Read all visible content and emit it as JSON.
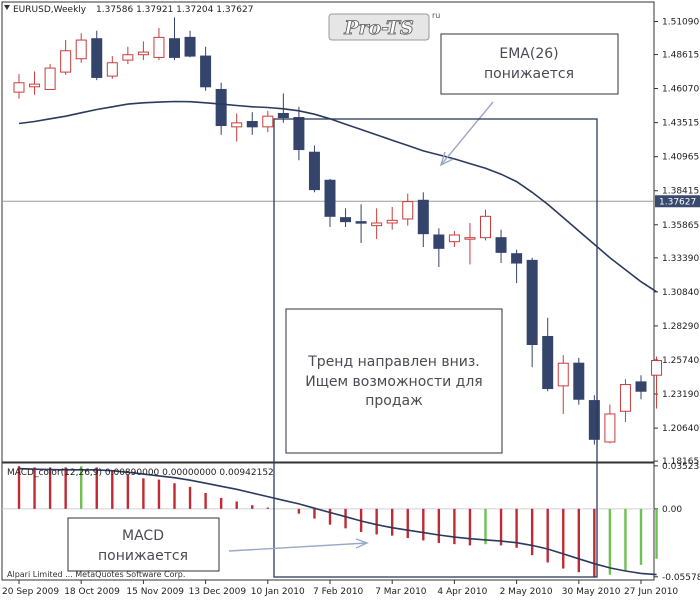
{
  "chart_data": {
    "type": "candlestick",
    "main": {
      "title": "EURUSD,Weekly",
      "ohlc_readout": "1.37586 1.37921 1.37204 1.37627",
      "current_price": 1.37627,
      "current_price_label": "1.37627",
      "y_ticks": [
        "1.51090",
        "1.48615",
        "1.46070",
        "1.43515",
        "1.40965",
        "1.38415",
        "1.35865",
        "1.33390",
        "1.30840",
        "1.28290",
        "1.25740",
        "1.23190",
        "1.20640",
        "1.18165"
      ],
      "ylim": [
        1.181,
        1.5255
      ],
      "candles": [
        {
          "o": 1.458,
          "h": 1.4715,
          "l": 1.453,
          "c": 1.465
        },
        {
          "o": 1.462,
          "h": 1.4735,
          "l": 1.456,
          "c": 1.464
        },
        {
          "o": 1.46,
          "h": 1.479,
          "l": 1.46,
          "c": 1.476
        },
        {
          "o": 1.473,
          "h": 1.497,
          "l": 1.471,
          "c": 1.489
        },
        {
          "o": 1.483,
          "h": 1.502,
          "l": 1.48,
          "c": 1.497
        },
        {
          "o": 1.498,
          "h": 1.504,
          "l": 1.467,
          "c": 1.469
        },
        {
          "o": 1.47,
          "h": 1.485,
          "l": 1.468,
          "c": 1.48
        },
        {
          "o": 1.482,
          "h": 1.492,
          "l": 1.479,
          "c": 1.486
        },
        {
          "o": 1.486,
          "h": 1.496,
          "l": 1.482,
          "c": 1.488
        },
        {
          "o": 1.484,
          "h": 1.506,
          "l": 1.482,
          "c": 1.499
        },
        {
          "o": 1.498,
          "h": 1.514,
          "l": 1.482,
          "c": 1.484
        },
        {
          "o": 1.499,
          "h": 1.504,
          "l": 1.484,
          "c": 1.485
        },
        {
          "o": 1.485,
          "h": 1.492,
          "l": 1.459,
          "c": 1.462
        },
        {
          "o": 1.46,
          "h": 1.465,
          "l": 1.426,
          "c": 1.433
        },
        {
          "o": 1.432,
          "h": 1.442,
          "l": 1.421,
          "c": 1.435
        },
        {
          "o": 1.436,
          "h": 1.443,
          "l": 1.426,
          "c": 1.432
        },
        {
          "o": 1.432,
          "h": 1.444,
          "l": 1.428,
          "c": 1.44
        },
        {
          "o": 1.442,
          "h": 1.457,
          "l": 1.435,
          "c": 1.439
        },
        {
          "o": 1.439,
          "h": 1.447,
          "l": 1.407,
          "c": 1.415
        },
        {
          "o": 1.413,
          "h": 1.418,
          "l": 1.383,
          "c": 1.385
        },
        {
          "o": 1.392,
          "h": 1.393,
          "l": 1.357,
          "c": 1.365
        },
        {
          "o": 1.364,
          "h": 1.371,
          "l": 1.357,
          "c": 1.361
        },
        {
          "o": 1.361,
          "h": 1.374,
          "l": 1.345,
          "c": 1.36
        },
        {
          "o": 1.358,
          "h": 1.371,
          "l": 1.348,
          "c": 1.36
        },
        {
          "o": 1.36,
          "h": 1.372,
          "l": 1.355,
          "c": 1.362
        },
        {
          "o": 1.363,
          "h": 1.382,
          "l": 1.358,
          "c": 1.376
        },
        {
          "o": 1.377,
          "h": 1.383,
          "l": 1.342,
          "c": 1.352
        },
        {
          "o": 1.351,
          "h": 1.356,
          "l": 1.327,
          "c": 1.341
        },
        {
          "o": 1.346,
          "h": 1.354,
          "l": 1.342,
          "c": 1.351
        },
        {
          "o": 1.348,
          "h": 1.36,
          "l": 1.329,
          "c": 1.349
        },
        {
          "o": 1.349,
          "h": 1.37,
          "l": 1.347,
          "c": 1.365
        },
        {
          "o": 1.349,
          "h": 1.355,
          "l": 1.33,
          "c": 1.338
        },
        {
          "o": 1.337,
          "h": 1.34,
          "l": 1.315,
          "c": 1.33
        },
        {
          "o": 1.332,
          "h": 1.334,
          "l": 1.252,
          "c": 1.269
        },
        {
          "o": 1.275,
          "h": 1.289,
          "l": 1.234,
          "c": 1.236
        },
        {
          "o": 1.238,
          "h": 1.261,
          "l": 1.217,
          "c": 1.255
        },
        {
          "o": 1.255,
          "h": 1.259,
          "l": 1.224,
          "c": 1.228
        },
        {
          "o": 1.227,
          "h": 1.231,
          "l": 1.194,
          "c": 1.198
        },
        {
          "o": 1.196,
          "h": 1.224,
          "l": 1.195,
          "c": 1.217
        },
        {
          "o": 1.219,
          "h": 1.243,
          "l": 1.211,
          "c": 1.239
        },
        {
          "o": 1.241,
          "h": 1.246,
          "l": 1.228,
          "c": 1.234
        },
        {
          "o": 1.246,
          "h": 1.26,
          "l": 1.221,
          "c": 1.257
        }
      ],
      "ema26": [
        1.4345,
        1.436,
        1.438,
        1.44,
        1.4425,
        1.445,
        1.447,
        1.449,
        1.45,
        1.4505,
        1.451,
        1.4508,
        1.45,
        1.449,
        1.448,
        1.447,
        1.4465,
        1.4455,
        1.444,
        1.4415,
        1.438,
        1.434,
        1.43,
        1.426,
        1.422,
        1.418,
        1.414,
        1.411,
        1.408,
        1.4045,
        1.401,
        1.3965,
        1.391,
        1.383,
        1.374,
        1.364,
        1.354,
        1.344,
        1.334,
        1.325,
        1.316,
        1.3085
      ]
    },
    "macd": {
      "title": "MACD_color(12,26,9) 0.00890000 0.00000000 0.00942152",
      "y_ticks": [
        "0.035238",
        "0.00",
        "-0.055782"
      ],
      "ylim": [
        -0.0584,
        0.0376
      ],
      "hist": [
        0.035,
        0.034,
        0.034,
        0.034,
        0.035,
        0.034,
        0.031,
        0.028,
        0.025,
        0.024,
        0.021,
        0.018,
        0.013,
        0.009,
        0.006,
        0.003,
        0.001,
        0.0,
        -0.004,
        -0.008,
        -0.013,
        -0.016,
        -0.019,
        -0.021,
        -0.022,
        -0.024,
        -0.026,
        -0.028,
        -0.029,
        -0.03,
        -0.029,
        -0.03,
        -0.032,
        -0.038,
        -0.044,
        -0.049,
        -0.052,
        -0.056,
        -0.054,
        -0.051,
        -0.046,
        -0.041
      ],
      "signal": [
        0.033,
        0.0325,
        0.0322,
        0.032,
        0.032,
        0.0319,
        0.0313,
        0.03,
        0.0285,
        0.027,
        0.0255,
        0.0235,
        0.021,
        0.0185,
        0.016,
        0.013,
        0.01,
        0.007,
        0.004,
        0.0005,
        -0.003,
        -0.0065,
        -0.01,
        -0.013,
        -0.0155,
        -0.0175,
        -0.0195,
        -0.0215,
        -0.0232,
        -0.0245,
        -0.0255,
        -0.0265,
        -0.0278,
        -0.03,
        -0.033,
        -0.037,
        -0.041,
        -0.045,
        -0.0485,
        -0.051,
        -0.053,
        -0.054
      ]
    },
    "x_labels": [
      {
        "i": 0,
        "t": "20 Sep 2009"
      },
      {
        "i": 4,
        "t": "18 Oct 2009"
      },
      {
        "i": 8,
        "t": "15 Nov 2009"
      },
      {
        "i": 12,
        "t": "13 Dec 2009"
      },
      {
        "i": 16,
        "t": "10 Jan 2010"
      },
      {
        "i": 20,
        "t": "7 Feb 2010"
      },
      {
        "i": 24,
        "t": "7 Mar 2010"
      },
      {
        "i": 28,
        "t": "4 Apr 2010"
      },
      {
        "i": 32,
        "t": "2 May 2010"
      },
      {
        "i": 36,
        "t": "30 May 2010"
      },
      {
        "i": 40,
        "t": "27 Jun 2010"
      }
    ],
    "colors": {
      "bear": "#34446a",
      "bull_edge": "#c83c3c",
      "ema": "#2c3a5e",
      "macd_pos_rise": "#6fbf52",
      "macd_fall": "#c02a35",
      "macd_neg_rise": "#6fbf52",
      "signal": "#2c3a5e",
      "arrow": "#9aaac6",
      "axis": "#333333",
      "grid": "#c9c9c9"
    }
  },
  "annotations": {
    "logo": "Pro-TS",
    "logo_sup": "ru",
    "ema_note_line1": "EMA(26)",
    "ema_note_line2": "понижается",
    "trend_line1": "Тренд направлен вниз.",
    "trend_line2": "Ищем возможности для",
    "trend_line3": "продаж",
    "macd_note_line1": "MACD",
    "macd_note_line2": "понижается",
    "broker": "Alpari Limited ... MetaQuotes Software Corp."
  }
}
